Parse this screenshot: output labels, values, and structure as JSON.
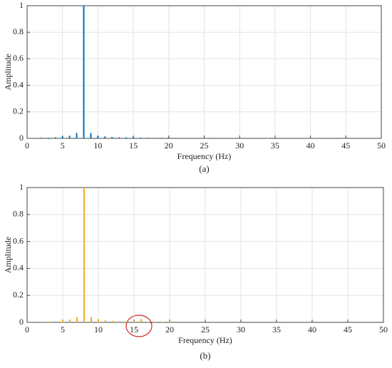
{
  "chart_data": [
    {
      "type": "stem",
      "caption": "(a)",
      "x_label": "Frequency (Hz)",
      "y_label": "Amplitude",
      "color": "#0072bd",
      "grid": true,
      "x": [
        2,
        3,
        4,
        5,
        6,
        7,
        8,
        9,
        10,
        11,
        12,
        13,
        14,
        15,
        16,
        17,
        18,
        19,
        20
      ],
      "values": [
        0.005,
        0.005,
        0.008,
        0.015,
        0.02,
        0.04,
        1,
        0.04,
        0.02,
        0.015,
        0.01,
        0.008,
        0.007,
        0.012,
        0.005,
        0.005,
        0.004,
        0.004,
        0.006
      ],
      "xlim": [
        0,
        50
      ],
      "xticks": [
        0,
        5,
        10,
        15,
        20,
        25,
        30,
        35,
        40,
        45,
        50
      ],
      "ylim": [
        0,
        1
      ],
      "yticks": [
        0,
        0.2,
        0.4,
        0.6,
        0.8,
        1
      ]
    },
    {
      "type": "stem",
      "caption": "(b)",
      "x_label": "Frequency (Hz)",
      "y_label": "Amplitude",
      "color": "#edb120",
      "grid": true,
      "x": [
        2,
        3,
        4,
        5,
        6,
        7,
        8,
        9,
        10,
        11,
        12,
        13,
        14,
        15,
        16,
        17,
        18,
        19,
        20
      ],
      "values": [
        0.005,
        0.005,
        0.008,
        0.02,
        0.02,
        0.04,
        1,
        0.04,
        0.025,
        0.015,
        0.01,
        0.008,
        0.007,
        0.01,
        0.025,
        0.005,
        0.004,
        0.004,
        0.005
      ],
      "xlim": [
        0,
        50
      ],
      "xticks": [
        0,
        5,
        10,
        15,
        20,
        25,
        30,
        35,
        40,
        45,
        50
      ],
      "ylim": [
        0,
        1
      ],
      "yticks": [
        0,
        0.2,
        0.4,
        0.6,
        0.8,
        1
      ]
    }
  ]
}
